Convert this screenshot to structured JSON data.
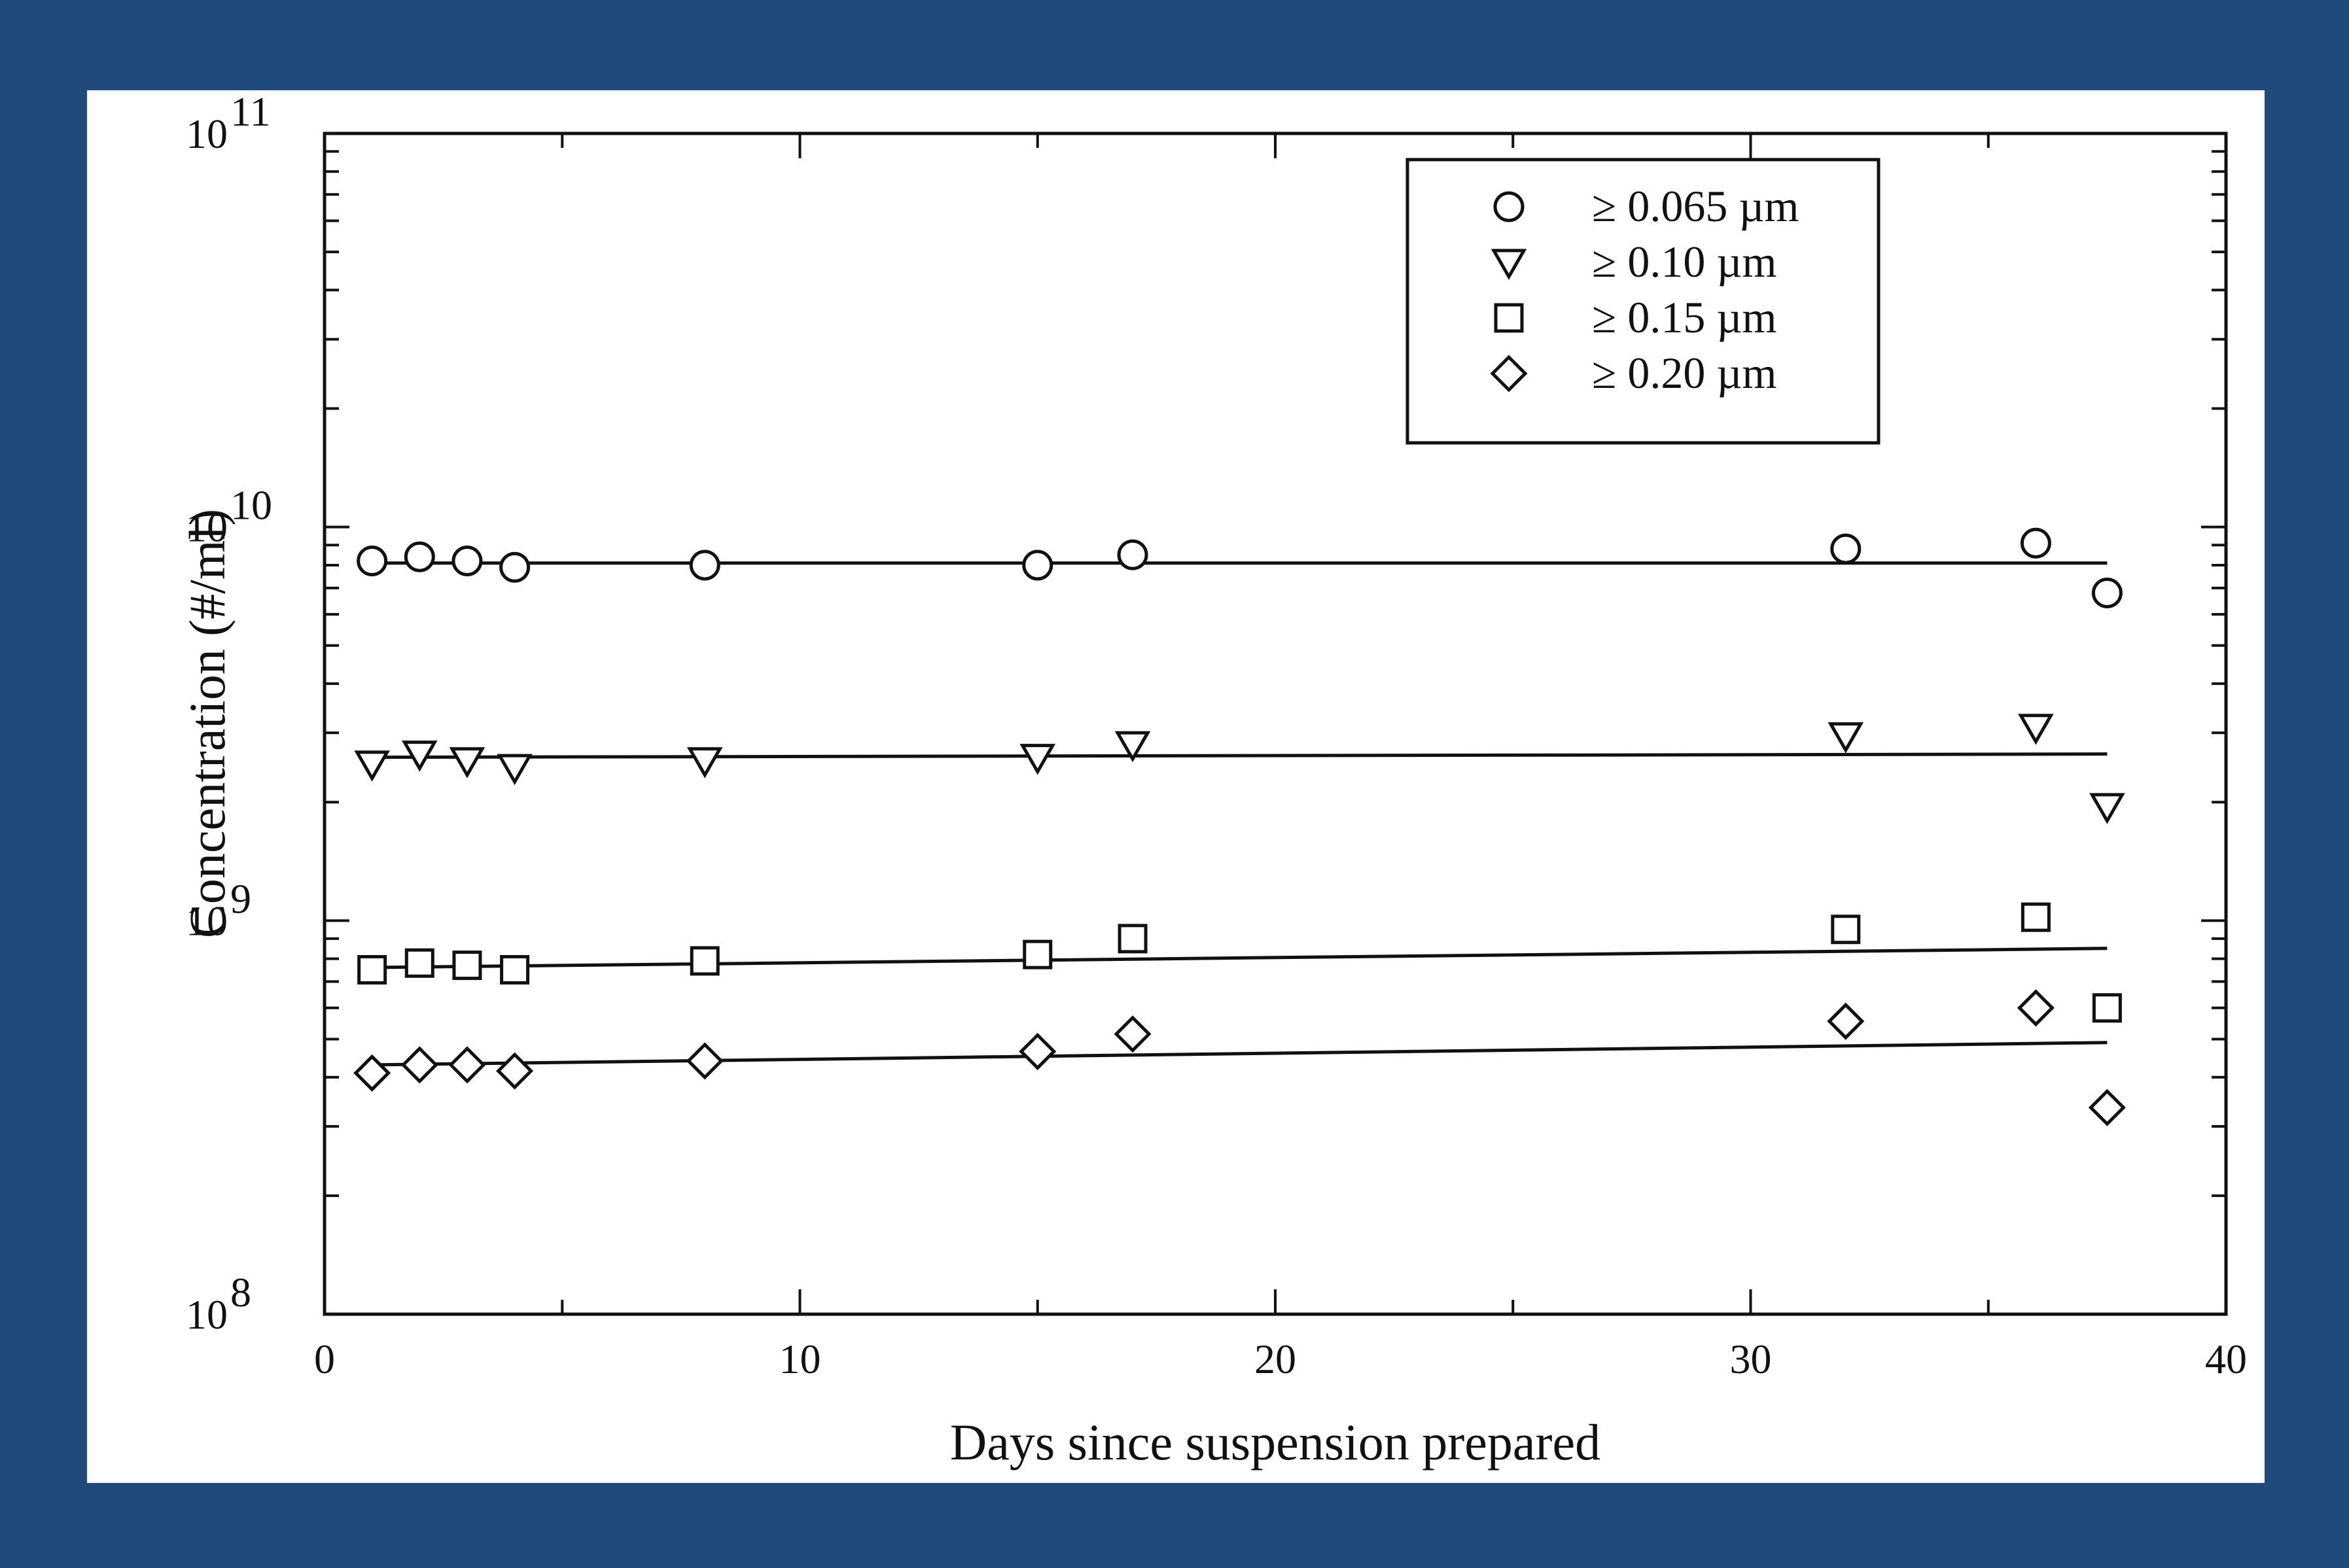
{
  "chart_data": {
    "type": "scatter",
    "xlabel": "Days since suspension prepared",
    "ylabel": "Concentration (#/ml)",
    "xlim": [
      0,
      40
    ],
    "ylim": [
      100000000,
      100000000000
    ],
    "yscale": "log",
    "x_ticks": [
      "0",
      "10",
      "20",
      "30",
      "40"
    ],
    "y_ticks": [
      {
        "base": "10",
        "exp": "8"
      },
      {
        "base": "10",
        "exp": "9"
      },
      {
        "base": "10",
        "exp": "10"
      },
      {
        "base": "10",
        "exp": "11"
      }
    ],
    "grid": false,
    "legend_position": "top-right",
    "series": [
      {
        "name": "≥ 0.065 µm",
        "marker": "circle",
        "x": [
          1,
          2,
          3,
          4,
          8,
          15,
          17,
          32,
          36,
          37.5
        ],
        "y": [
          8200000000.0,
          8400000000.0,
          8200000000.0,
          7900000000.0,
          8000000000.0,
          8000000000.0,
          8500000000.0,
          8800000000.0,
          9100000000.0,
          6800000000.0
        ],
        "fit": [
          [
            1,
            8100000000.0
          ],
          [
            37.5,
            8100000000.0
          ]
        ]
      },
      {
        "name": "≥ 0.10 µm",
        "marker": "triangle-down",
        "x": [
          1,
          2,
          3,
          4,
          8,
          15,
          17,
          32,
          36,
          37.5
        ],
        "y": [
          2500000000.0,
          2650000000.0,
          2550000000.0,
          2450000000.0,
          2550000000.0,
          2600000000.0,
          2800000000.0,
          2950000000.0,
          3100000000.0,
          1950000000.0
        ],
        "fit": [
          [
            1,
            2600000000.0
          ],
          [
            37.5,
            2650000000.0
          ]
        ]
      },
      {
        "name": "≥ 0.15 µm",
        "marker": "square",
        "x": [
          1,
          2,
          3,
          4,
          8,
          15,
          17,
          32,
          36,
          37.5
        ],
        "y": [
          750000000.0,
          780000000.0,
          770000000.0,
          750000000.0,
          790000000.0,
          820000000.0,
          900000000.0,
          950000000.0,
          1020000000.0,
          600000000.0
        ],
        "fit": [
          [
            1,
            760000000.0
          ],
          [
            37.5,
            850000000.0
          ]
        ]
      },
      {
        "name": "≥ 0.20 µm",
        "marker": "diamond",
        "x": [
          1,
          2,
          3,
          4,
          8,
          15,
          17,
          32,
          36,
          37.5
        ],
        "y": [
          410000000.0,
          430000000.0,
          430000000.0,
          415000000.0,
          440000000.0,
          465000000.0,
          515000000.0,
          555000000.0,
          600000000.0,
          335000000.0
        ],
        "fit": [
          [
            1,
            430000000.0
          ],
          [
            37.5,
            490000000.0
          ]
        ]
      }
    ]
  }
}
